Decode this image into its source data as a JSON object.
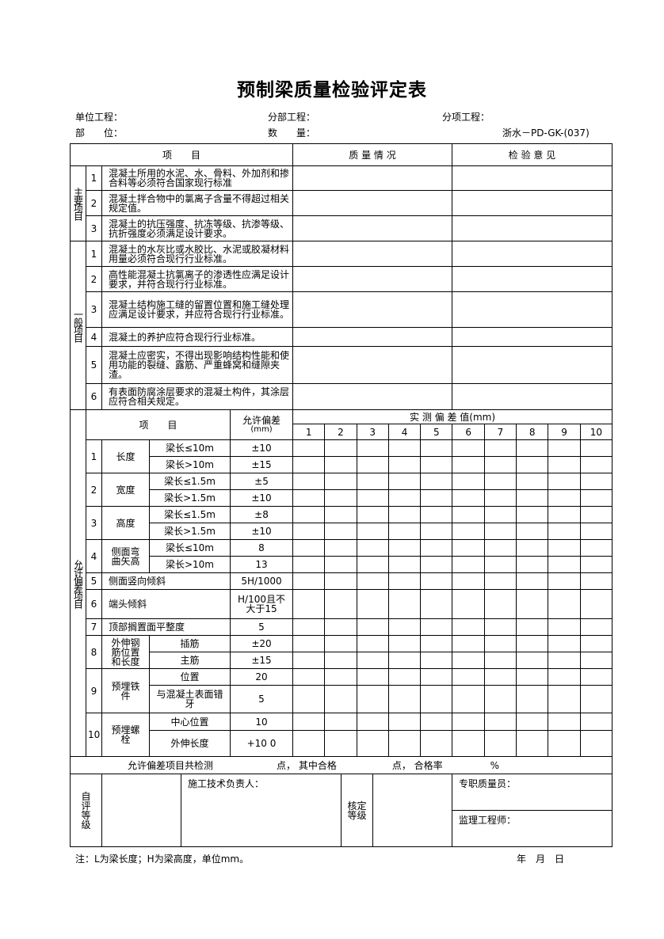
{
  "title": "预制梁质量检验评定表",
  "header": {
    "unit_project": "单位工程：",
    "sub_project": "分部工程：",
    "item_project": "分项工程：",
    "location": "部　　位：",
    "quantity": "数　　量：",
    "code": "浙水－PD-GK-(037)"
  },
  "table_head": {
    "item": "项　　目",
    "quality": "质 量 情 况",
    "opinion": "检 验 意 见"
  },
  "main_items": {
    "label": "主要项目",
    "rows": [
      {
        "no": "1",
        "text": "混凝土所用的水泥、水、骨料、外加剂和掺合料等必须符合国家现行标准"
      },
      {
        "no": "2",
        "text": "混凝土拌合物中的氯离子含量不得超过相关规定值。"
      },
      {
        "no": "3",
        "text": "混凝土的抗压强度、抗冻等级、抗渗等级、抗折强度必须满足设计要求。"
      }
    ]
  },
  "general_items": {
    "label": "一般项目",
    "rows": [
      {
        "no": "1",
        "text": "混凝土的水灰比或水胶比、水泥或胶凝材料用量必须符合现行行业标准。"
      },
      {
        "no": "2",
        "text": "高性能混凝土抗氯离子的渗透性应满足设计要求，并符合现行行业标准。"
      },
      {
        "no": "3",
        "text": "混凝土结构施工缝的留置位置和施工缝处理应满足设计要求，并应符合现行行业标准。"
      },
      {
        "no": "4",
        "text": "混凝土的养护应符合现行行业标准。"
      },
      {
        "no": "5",
        "text": "混凝土应密实，不得出现影响结构性能和使用功能的裂缝、露筋、严重蜂窝和缝隙夹渣。"
      },
      {
        "no": "6",
        "text": "有表面防腐涂层要求的混凝土构件，其涂层应符合相关规定。"
      }
    ]
  },
  "deviation": {
    "label": "允许偏差项目",
    "item_head": "项　　目",
    "tol_head": "允许偏差",
    "tol_unit": "(mm)",
    "measured_head": "实 测 偏 差 值(mm)",
    "cols": [
      "1",
      "2",
      "3",
      "4",
      "5",
      "6",
      "7",
      "8",
      "9",
      "10"
    ],
    "groups": [
      {
        "no": "1",
        "name": "长度",
        "subs": [
          {
            "sub": "梁长≤10m",
            "tol": "±10"
          },
          {
            "sub": "梁长>10m",
            "tol": "±15"
          }
        ]
      },
      {
        "no": "2",
        "name": "宽度",
        "subs": [
          {
            "sub": "梁长≤1.5m",
            "tol": "±5"
          },
          {
            "sub": "梁长>1.5m",
            "tol": "±10"
          }
        ]
      },
      {
        "no": "3",
        "name": "高度",
        "subs": [
          {
            "sub": "梁长≤1.5m",
            "tol": "±8"
          },
          {
            "sub": "梁长>1.5m",
            "tol": "±10"
          }
        ]
      },
      {
        "no": "4",
        "name": "侧面弯曲矢高",
        "subs": [
          {
            "sub": "梁长≤10m",
            "tol": "8"
          },
          {
            "sub": "梁长>10m",
            "tol": "13"
          }
        ]
      },
      {
        "no": "5",
        "name": "侧面竖向倾斜",
        "tol": "5H/1000"
      },
      {
        "no": "6",
        "name": "端头倾斜",
        "tol": "H/100且不大于15"
      },
      {
        "no": "7",
        "name": "顶部搁置面平整度",
        "tol": "5"
      },
      {
        "no": "8",
        "name": "外伸钢筋位置和长度",
        "subs": [
          {
            "sub": "插筋",
            "tol": "±20"
          },
          {
            "sub": "主筋",
            "tol": "±15"
          }
        ]
      },
      {
        "no": "9",
        "name": "预埋铁件",
        "subs": [
          {
            "sub": "位置",
            "tol": "20"
          },
          {
            "sub": "与混凝土表面错牙",
            "tol": "5"
          }
        ]
      },
      {
        "no": "10",
        "name": "预埋螺栓",
        "subs": [
          {
            "sub": "中心位置",
            "tol": "10"
          },
          {
            "sub": "外伸长度",
            "tol": "+10 0"
          }
        ]
      }
    ]
  },
  "summary": {
    "a": "允许偏差项目共检测",
    "b": "点，  其中合格",
    "c": "点，  合格率",
    "d": "%"
  },
  "bottom": {
    "self_grade": "自评等级",
    "tech_lead": "施工技术负责人：",
    "verify_grade": "核定等级",
    "qc": "专职质量员：",
    "supervisor": "监理工程师："
  },
  "footer": {
    "note": "注：L为梁长度；H为梁高度，单位mm。",
    "date": "年　月　日"
  }
}
